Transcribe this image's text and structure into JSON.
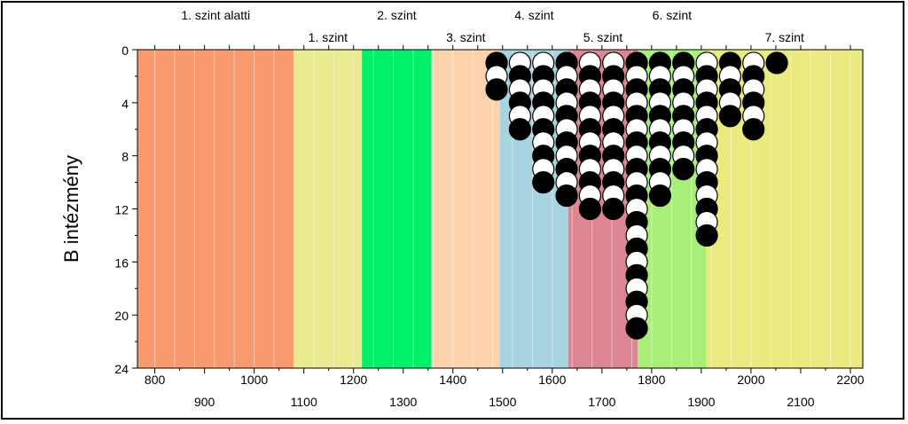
{
  "chart_data": {
    "type": "scatter",
    "ylabel": "B intézmény",
    "xlim": [
      765,
      2225
    ],
    "ylim": [
      0,
      24
    ],
    "y_inverted": true,
    "y_ticks": [
      0,
      4,
      8,
      12,
      16,
      20,
      24
    ],
    "x_ticks_top_row": [
      800,
      1000,
      1200,
      1400,
      1600,
      1800,
      2000,
      2200
    ],
    "x_ticks_bottom_row": [
      900,
      1100,
      1300,
      1500,
      1700,
      1900,
      2100
    ],
    "minor_grid_step": 40,
    "bands": [
      {
        "label": "1. szint alatti",
        "from": 765,
        "to": 1080,
        "color": "#f99a6e",
        "label_row": "top"
      },
      {
        "label": "1. szint",
        "from": 1080,
        "to": 1217,
        "color": "#eaea90",
        "label_row": "bottom"
      },
      {
        "label": "2. szint",
        "from": 1217,
        "to": 1357,
        "color": "#00f06a",
        "label_row": "top"
      },
      {
        "label": "3. szint",
        "from": 1357,
        "to": 1495,
        "color": "#fdd3ad",
        "label_row": "bottom"
      },
      {
        "label": "4. szint",
        "from": 1495,
        "to": 1632,
        "color": "#a8d4e2",
        "label_row": "top"
      },
      {
        "label": "5. szint",
        "from": 1632,
        "to": 1772,
        "color": "#dc8694",
        "label_row": "bottom"
      },
      {
        "label": "6. szint",
        "from": 1772,
        "to": 1910,
        "color": "#a8ee78",
        "label_row": "top"
      },
      {
        "label": "7. szint",
        "from": 1910,
        "to": 2225,
        "color": "#eaea80",
        "label_row": "bottom"
      }
    ],
    "columns": [
      {
        "x": 1488,
        "count": 3
      },
      {
        "x": 1535,
        "count": 6
      },
      {
        "x": 1582,
        "count": 10
      },
      {
        "x": 1629,
        "count": 11
      },
      {
        "x": 1676,
        "count": 12
      },
      {
        "x": 1723,
        "count": 12
      },
      {
        "x": 1770,
        "count": 21
      },
      {
        "x": 1817,
        "count": 11
      },
      {
        "x": 1864,
        "count": 9
      },
      {
        "x": 1911,
        "count": 14
      },
      {
        "x": 1958,
        "count": 5
      },
      {
        "x": 2005,
        "count": 6
      },
      {
        "x": 2052,
        "count": 1
      }
    ],
    "marker_colors": [
      "#000000",
      "#ffffff"
    ],
    "marker_rule": "alternating black/white, bottom marker of each column counts down from its total"
  }
}
